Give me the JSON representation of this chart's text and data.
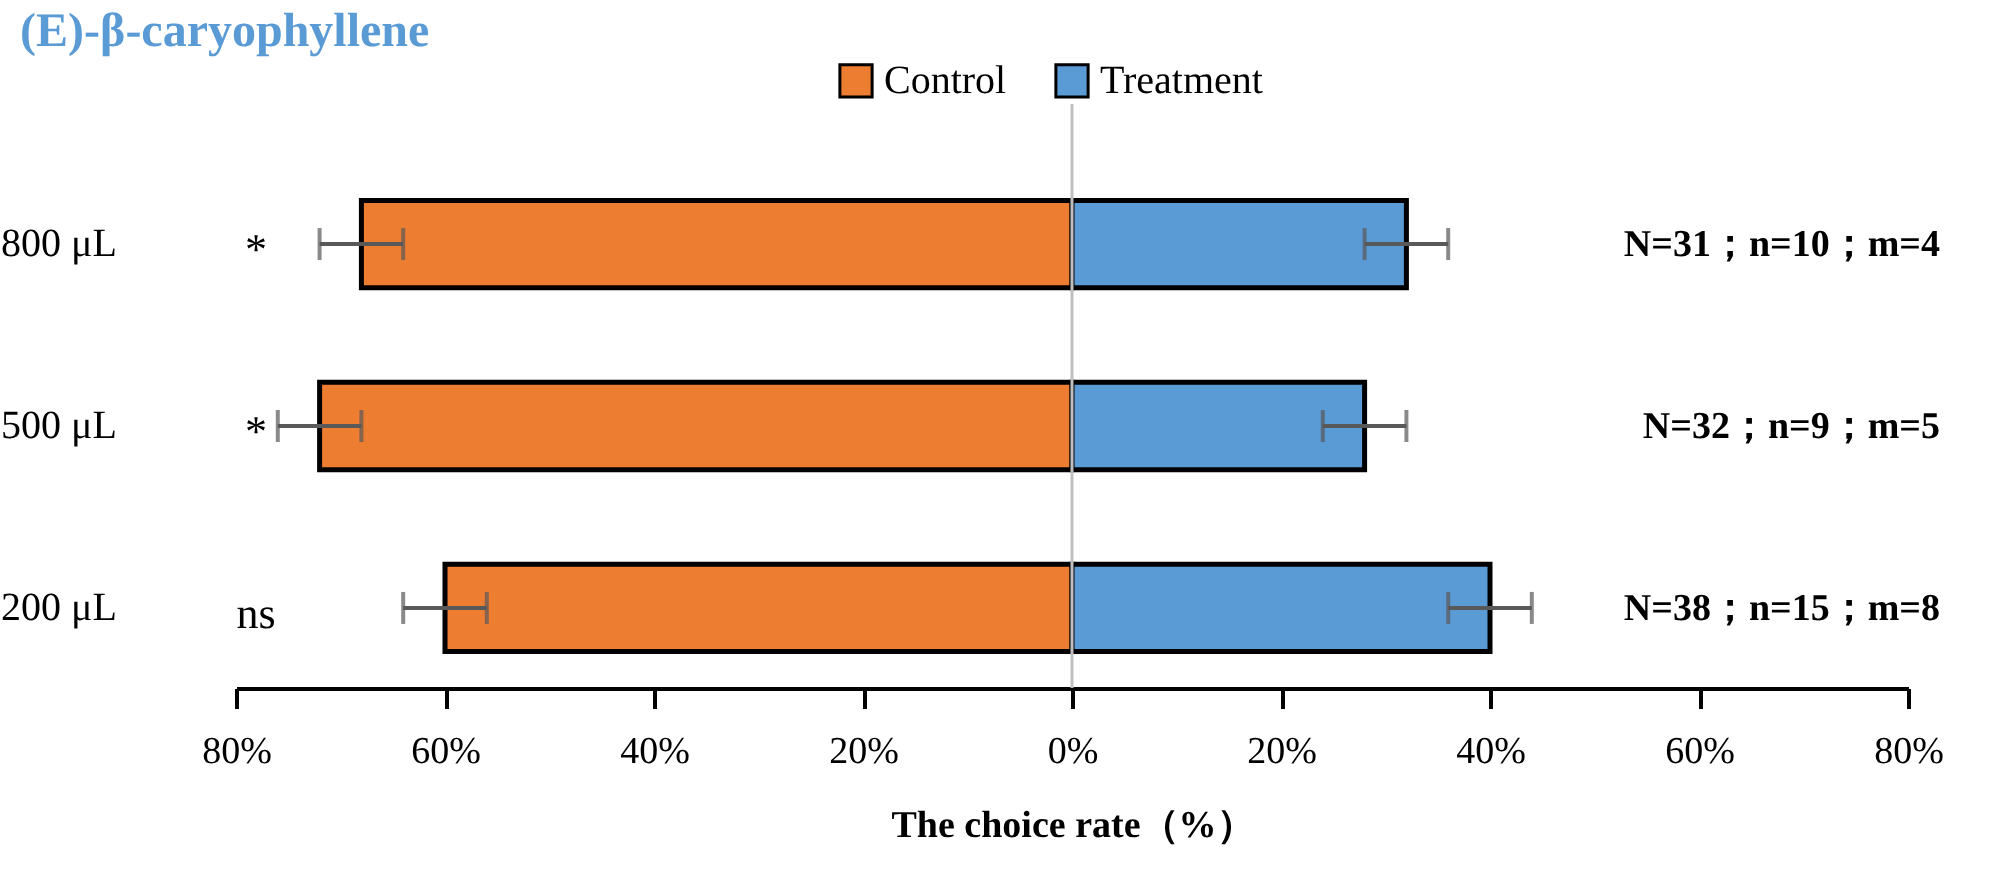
{
  "chart_data": {
    "type": "bar",
    "orientation": "horizontal",
    "title": "(E)-β-caryophyllene",
    "xlabel": "The choice rate（%）",
    "categories": [
      "800 μL",
      "500 μL",
      "200 μL"
    ],
    "series": [
      {
        "name": "Control",
        "color": "#ed7d31",
        "values": [
          -68,
          -72,
          -60
        ],
        "errors": [
          4,
          4,
          4
        ]
      },
      {
        "name": "Treatment",
        "color": "#5b9bd5",
        "values": [
          32,
          28,
          40
        ],
        "errors": [
          4,
          4,
          4
        ]
      }
    ],
    "xlim": [
      -80,
      80
    ],
    "xticks": [
      {
        "value": -80,
        "label": "80%"
      },
      {
        "value": -60,
        "label": "60%"
      },
      {
        "value": -40,
        "label": "40%"
      },
      {
        "value": -20,
        "label": "20%"
      },
      {
        "value": 0,
        "label": "0%"
      },
      {
        "value": 20,
        "label": "20%"
      },
      {
        "value": 40,
        "label": "40%"
      },
      {
        "value": 60,
        "label": "60%"
      },
      {
        "value": 80,
        "label": "80%"
      }
    ],
    "ref_lines": [
      {
        "axis": "x",
        "value": 0,
        "color": "#bfbfbf"
      }
    ],
    "annotations": [
      "*",
      "*",
      "ns",
      "N=31；n=10；m=4",
      "N=32；n=9；m=5",
      "N=38；n=15；m=8"
    ],
    "stacked": true,
    "legend": "top",
    "grid": false
  }
}
